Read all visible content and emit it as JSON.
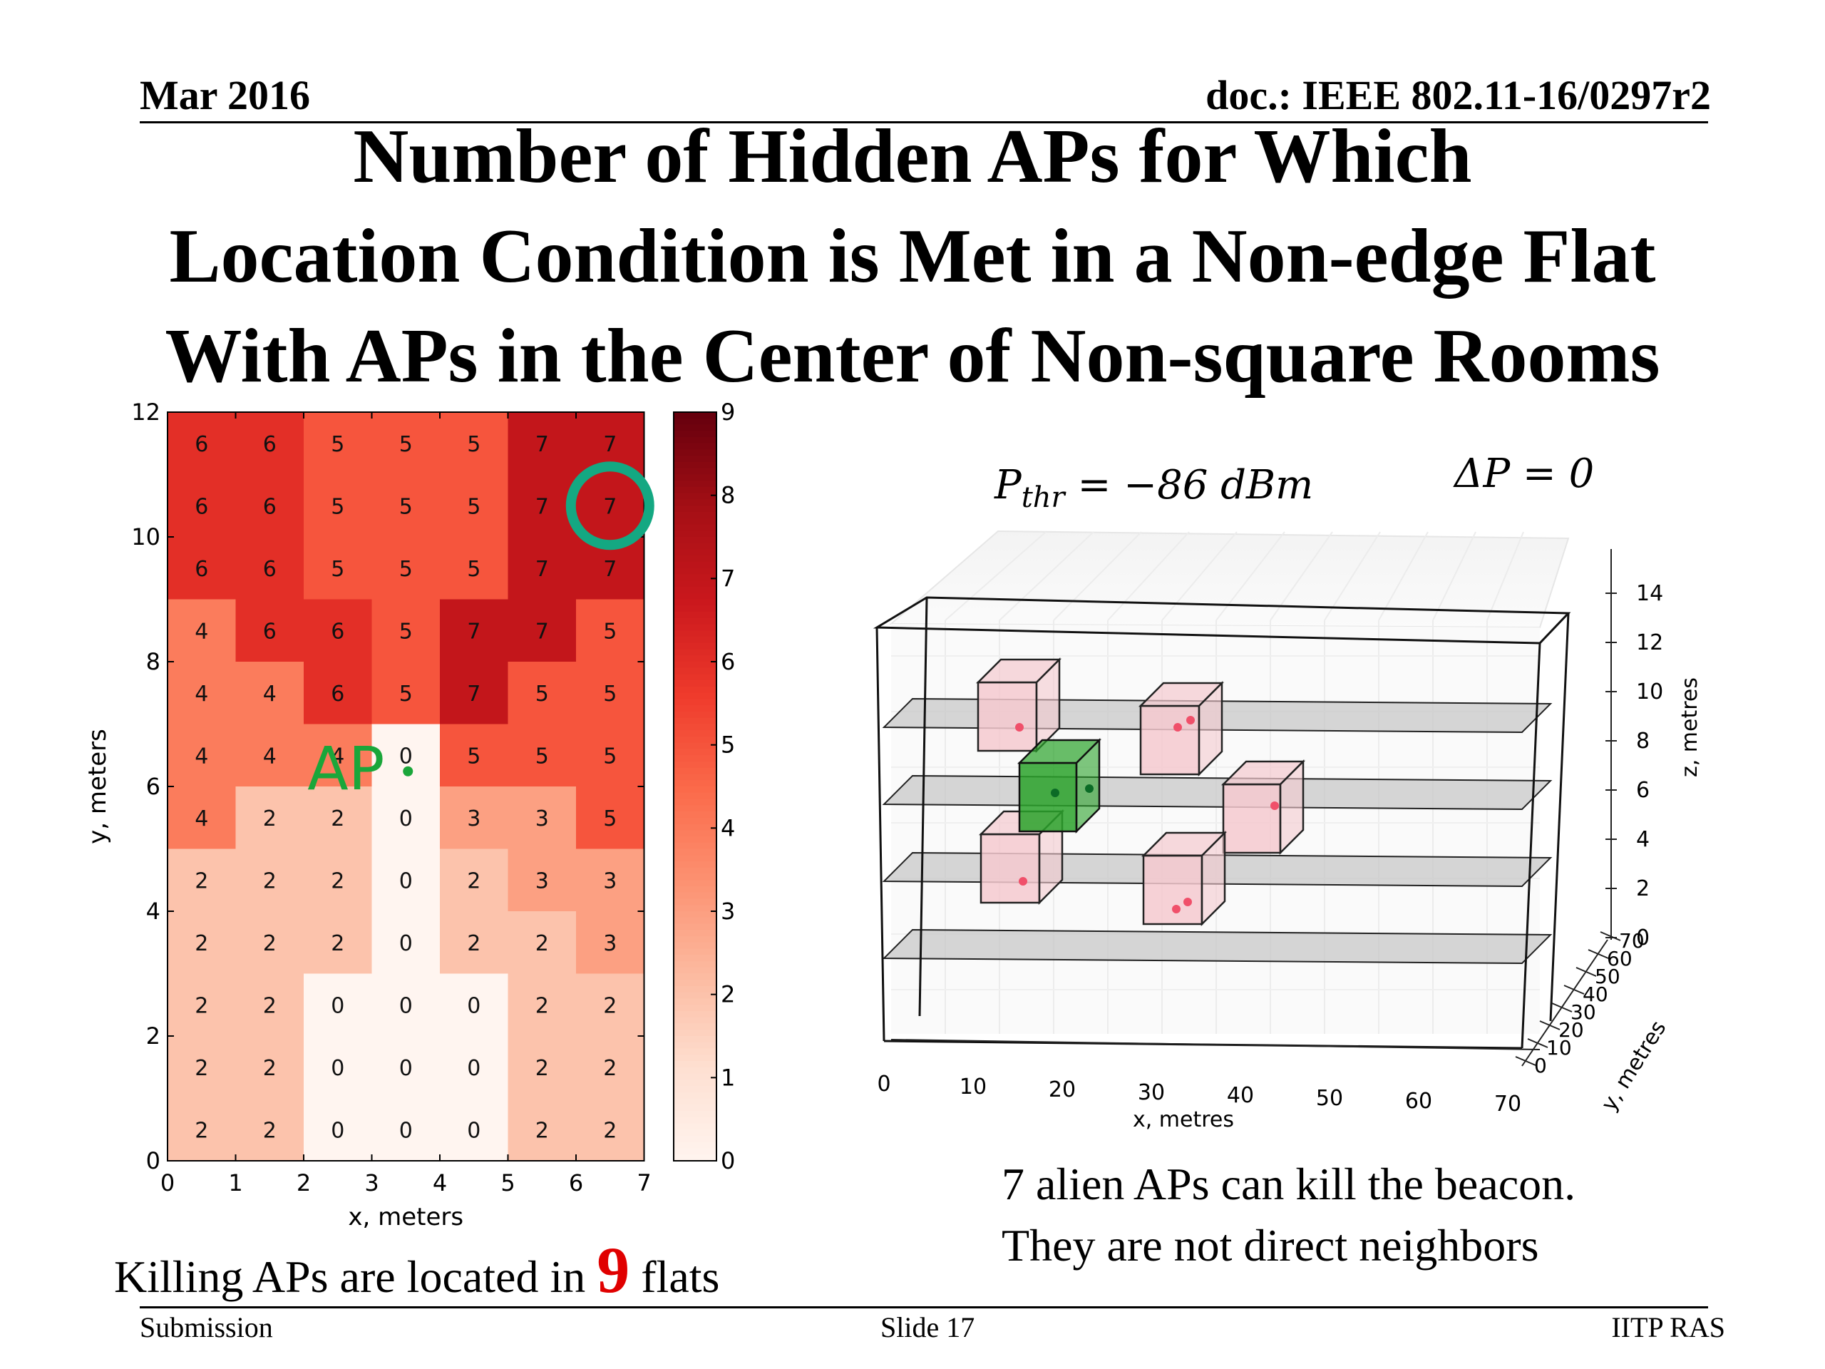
{
  "header": {
    "date": "Mar 2016",
    "doc": "doc.: IEEE 802.11-16/0297r2"
  },
  "title": [
    "Number of Hidden APs for Which",
    "Location Condition is Met in a Non-edge Flat",
    "With APs in the Center of Non-square Rooms"
  ],
  "chart_data": [
    {
      "type": "heatmap",
      "xlabel": "x, meters",
      "ylabel": "y, meters",
      "xlim": [
        0,
        7
      ],
      "ylim": [
        0,
        12
      ],
      "xticks": [
        "0",
        "1",
        "2",
        "3",
        "4",
        "5",
        "6",
        "7"
      ],
      "yticks": [
        "0",
        "2",
        "4",
        "6",
        "8",
        "10",
        "12"
      ],
      "colorbar": {
        "range": [
          0,
          9
        ],
        "ticks": [
          "0",
          "1",
          "2",
          "3",
          "4",
          "5",
          "6",
          "7",
          "8",
          "9"
        ]
      },
      "rows_top_to_bottom": [
        [
          6,
          6,
          5,
          5,
          5,
          7,
          7
        ],
        [
          6,
          6,
          5,
          5,
          5,
          7,
          7
        ],
        [
          6,
          6,
          5,
          5,
          5,
          7,
          7
        ],
        [
          4,
          6,
          6,
          5,
          7,
          7,
          5
        ],
        [
          4,
          4,
          6,
          5,
          7,
          5,
          5
        ],
        [
          4,
          4,
          4,
          0,
          5,
          5,
          5
        ],
        [
          4,
          2,
          2,
          0,
          3,
          3,
          5
        ],
        [
          2,
          2,
          2,
          0,
          2,
          3,
          3
        ],
        [
          2,
          2,
          2,
          0,
          2,
          2,
          3
        ],
        [
          2,
          2,
          0,
          0,
          0,
          2,
          2
        ],
        [
          2,
          2,
          0,
          0,
          0,
          2,
          2
        ],
        [
          2,
          2,
          0,
          0,
          0,
          2,
          2
        ]
      ],
      "ap_annotation": {
        "label": "AP",
        "x": 3.5,
        "y": 6.3,
        "color": "#1aa63a"
      },
      "highlight": {
        "x": 6.5,
        "y": 10.5,
        "color": "#14a882"
      }
    },
    {
      "type": "scatter",
      "subtype": "3d-building",
      "xlabel": "x, metres",
      "ylabel": "y, metres",
      "zlabel": "z, metres",
      "xticks": [
        "0",
        "10",
        "20",
        "30",
        "40",
        "50",
        "60",
        "70"
      ],
      "yticks": [
        "0",
        "10",
        "20",
        "30",
        "40",
        "50",
        "60",
        "70"
      ],
      "zticks": [
        "0",
        "2",
        "4",
        "6",
        "8",
        "10",
        "12",
        "14"
      ],
      "annotations": [
        "P_thr = −86 dBm",
        "ΔP = 0"
      ],
      "colors": {
        "target_flat": "#2aa22a",
        "alien_flat": "#f4c9cf",
        "alien_ap": "#f0506a",
        "floor": "#c8c8c8"
      }
    }
  ],
  "annotations3d": {
    "pthr_symbol": "P",
    "pthr_sub": "thr",
    "pthr_value": " = −86 dBm",
    "deltap": "ΔP = 0"
  },
  "captions": {
    "left_before": "Killing APs are located in ",
    "left_number": "9",
    "left_after": " flats",
    "right_line1": "7 alien APs can kill the beacon.",
    "right_line2": "They are not direct neighbors"
  },
  "footer": {
    "left": "Submission",
    "center": "Slide 17",
    "right": "IITP RAS"
  }
}
